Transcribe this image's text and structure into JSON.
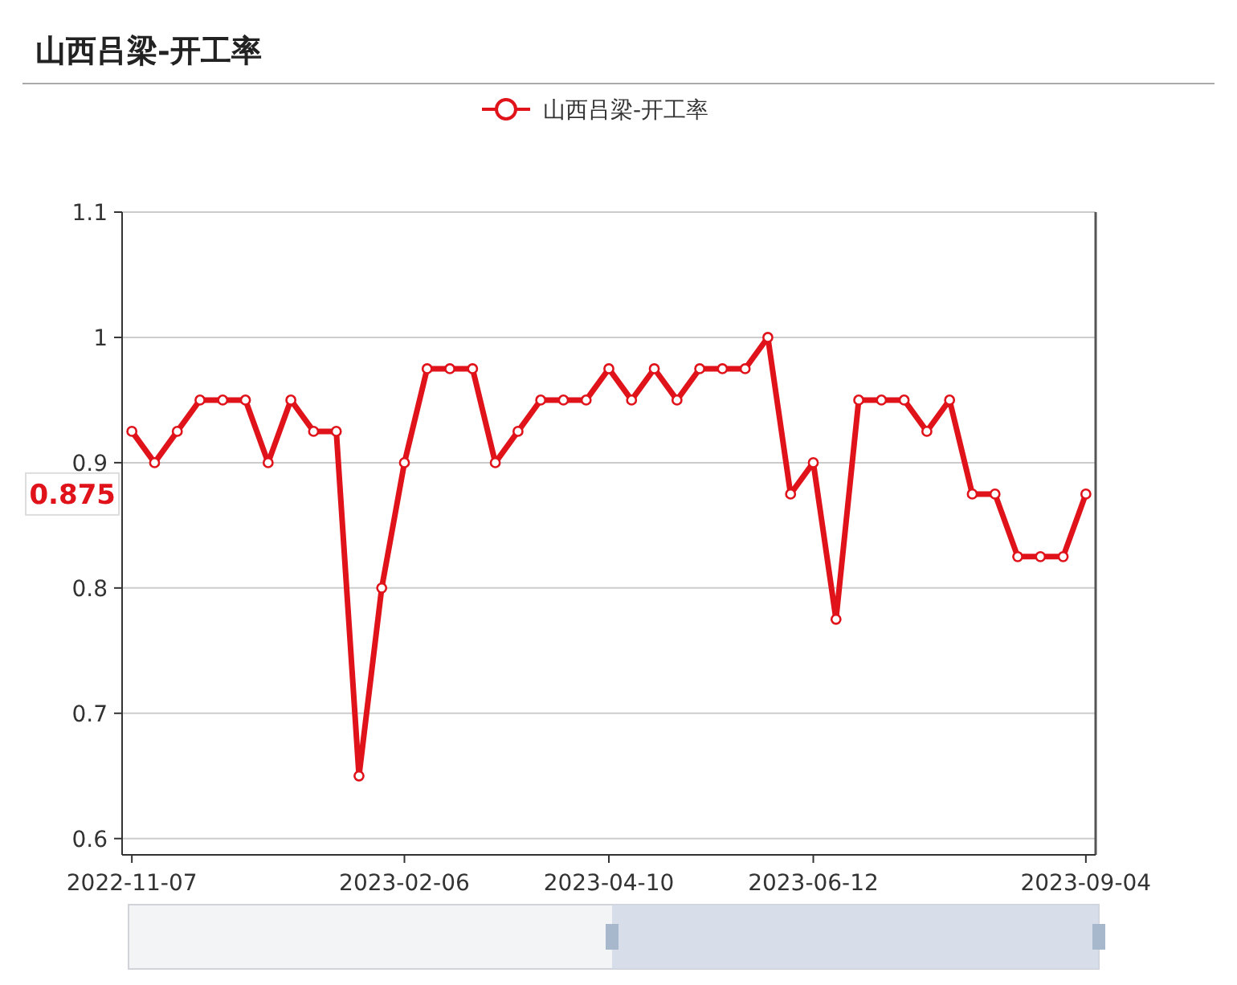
{
  "chart_data": {
    "type": "line",
    "title": "山西吕梁-开工率",
    "categories": [
      "2022-11-07",
      null,
      null,
      null,
      null,
      null,
      null,
      null,
      null,
      null,
      null,
      null,
      "2023-02-06",
      null,
      null,
      null,
      null,
      null,
      null,
      null,
      null,
      "2023-04-10",
      null,
      null,
      null,
      null,
      null,
      null,
      null,
      null,
      "2023-06-12",
      null,
      null,
      null,
      null,
      null,
      null,
      null,
      null,
      null,
      null,
      null,
      "2023-09-04"
    ],
    "series": [
      {
        "name": "山西吕梁-开工率",
        "color": "#e0131b",
        "values": [
          0.925,
          0.9,
          0.925,
          0.95,
          0.95,
          0.95,
          0.9,
          0.95,
          0.925,
          0.925,
          0.65,
          0.8,
          0.9,
          0.975,
          0.975,
          0.975,
          0.9,
          0.925,
          0.95,
          0.95,
          0.95,
          0.975,
          0.95,
          0.975,
          0.95,
          0.975,
          0.975,
          0.975,
          1.0,
          0.875,
          0.9,
          0.775,
          0.95,
          0.95,
          0.95,
          0.925,
          0.95,
          0.875,
          0.875,
          0.825,
          0.825,
          0.825,
          0.875
        ]
      }
    ],
    "ylim": [
      0.587,
      1.1
    ],
    "yticks": [
      0.6,
      0.7,
      0.8,
      0.9,
      1,
      1.1
    ],
    "grid": "y",
    "legend": "top",
    "marker": "circle",
    "line_style": "solid",
    "annotations": [
      "0.875"
    ]
  }
}
